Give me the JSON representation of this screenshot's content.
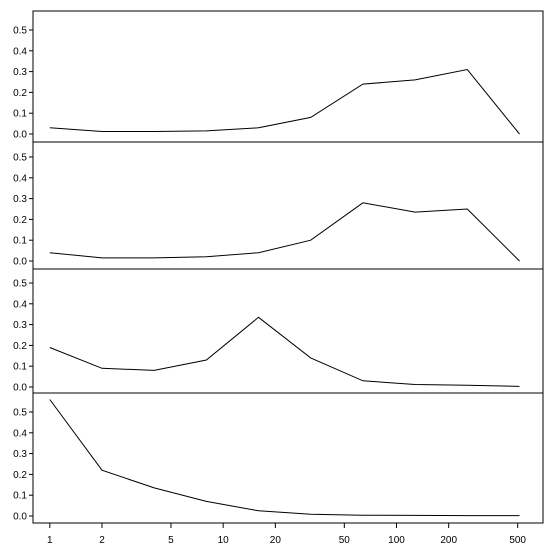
{
  "chart_data": {
    "type": "line",
    "x_scale": "log",
    "x": [
      1,
      2,
      4,
      8,
      16,
      32,
      64,
      128,
      256,
      512
    ],
    "x_ticks": [
      1,
      2,
      5,
      10,
      20,
      50,
      100,
      200,
      500
    ],
    "x_tick_labels": [
      "1",
      "2",
      "5",
      "10",
      "20",
      "50",
      "100",
      "200",
      "500"
    ],
    "xlim": [
      0.8,
      700
    ],
    "panels": [
      {
        "ylim": [
          0,
          0.57
        ],
        "y_ticks": [
          0.0,
          0.1,
          0.2,
          0.3,
          0.4,
          0.5
        ],
        "y_tick_labels": [
          "0.0",
          "0.1",
          "0.2",
          "0.3",
          "0.4",
          "0.5"
        ],
        "series": [
          {
            "values": [
              0.03,
              0.012,
              0.012,
              0.015,
              0.03,
              0.08,
              0.24,
              0.26,
              0.31,
              0.0
            ]
          }
        ]
      },
      {
        "ylim": [
          0,
          0.57
        ],
        "y_ticks": [
          0.0,
          0.1,
          0.2,
          0.3,
          0.4,
          0.5
        ],
        "y_tick_labels": [
          "0.0",
          "0.1",
          "0.2",
          "0.3",
          "0.4",
          "0.5"
        ],
        "series": [
          {
            "values": [
              0.04,
              0.015,
              0.015,
              0.02,
              0.04,
              0.1,
              0.28,
              0.235,
              0.25,
              0.0
            ]
          }
        ]
      },
      {
        "ylim": [
          0,
          0.57
        ],
        "y_ticks": [
          0.0,
          0.1,
          0.2,
          0.3,
          0.4,
          0.5
        ],
        "y_tick_labels": [
          "0.0",
          "0.1",
          "0.2",
          "0.3",
          "0.4",
          "0.5"
        ],
        "series": [
          {
            "values": [
              0.19,
              0.09,
              0.08,
              0.13,
              0.335,
              0.14,
              0.03,
              0.012,
              0.008,
              0.003
            ]
          }
        ]
      },
      {
        "ylim": [
          0,
          0.57
        ],
        "y_ticks": [
          0.0,
          0.1,
          0.2,
          0.3,
          0.4,
          0.5
        ],
        "y_tick_labels": [
          "0.0",
          "0.1",
          "0.2",
          "0.3",
          "0.4",
          "0.5"
        ],
        "series": [
          {
            "values": [
              0.56,
              0.22,
              0.135,
              0.07,
              0.025,
              0.008,
              0.004,
              0.003,
              0.002,
              0.002
            ]
          }
        ]
      }
    ],
    "grid": false,
    "line_color": "#000000"
  }
}
